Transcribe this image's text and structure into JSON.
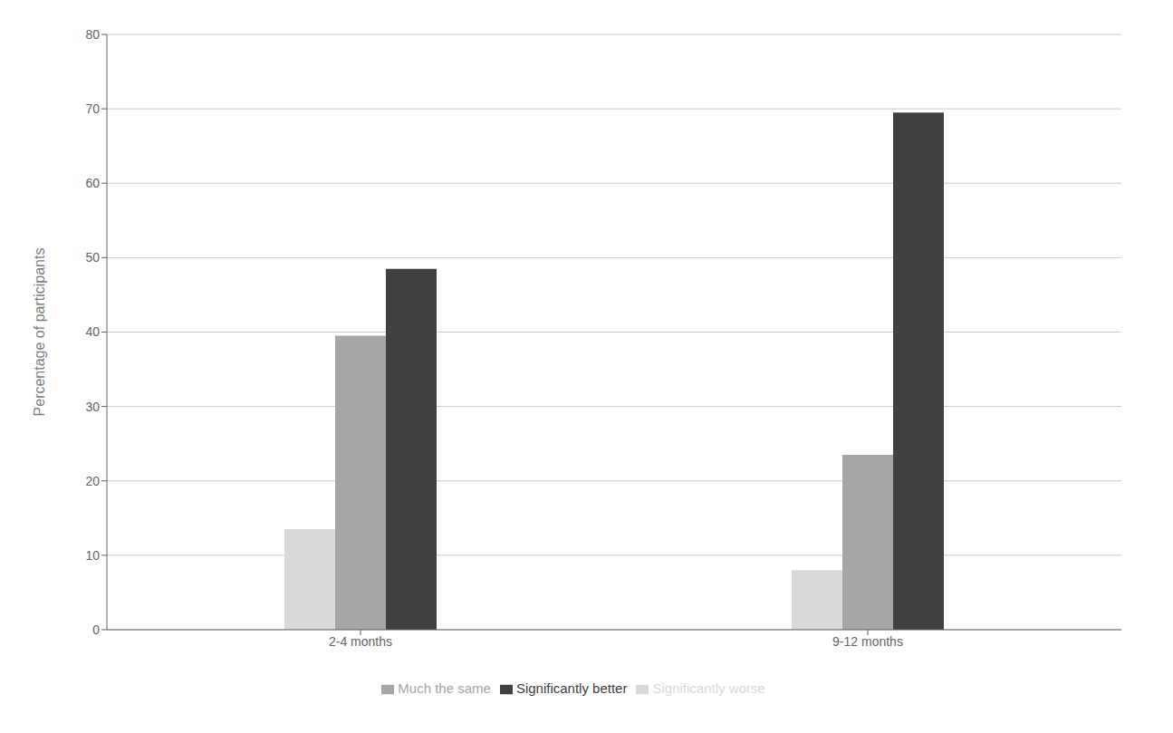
{
  "chart_data": {
    "type": "bar",
    "categories": [
      "2-4 months",
      "9-12 months"
    ],
    "series": [
      {
        "name": "Significantly worse",
        "color": "#d9d9d9",
        "values": [
          13.5,
          8.0
        ]
      },
      {
        "name": "Much the same",
        "color": "#a6a6a6",
        "values": [
          39.5,
          23.5
        ]
      },
      {
        "name": "Significantly better",
        "color": "#404040",
        "values": [
          48.5,
          69.5
        ]
      }
    ],
    "ylabel": "Percentage of participants",
    "ylim": [
      0,
      80
    ],
    "yticks": [
      0,
      10,
      20,
      30,
      40,
      50,
      60,
      70,
      80
    ],
    "grid": true,
    "legend": "bottom"
  }
}
